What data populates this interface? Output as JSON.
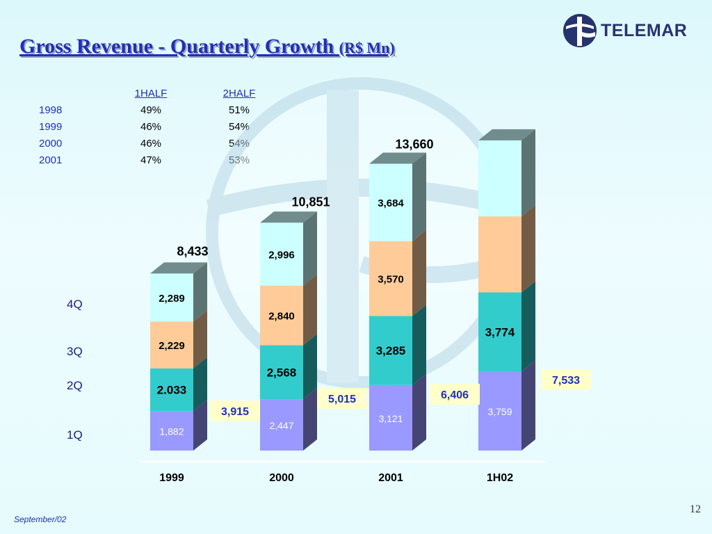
{
  "slide": {
    "title": "Gross Revenue  - Quarterly Growth",
    "title_unit": "(R$ Mn)",
    "logo_text": "TELEMAR",
    "page_number": "12",
    "footer": "September/02"
  },
  "half_split": {
    "headers": [
      "1HALF",
      "2HALF"
    ],
    "rows": [
      {
        "year": "1998",
        "h1": "49%",
        "h2": "51%"
      },
      {
        "year": "1999",
        "h1": "46%",
        "h2": "54%"
      },
      {
        "year": "2000",
        "h1": "46%",
        "h2": "54%"
      },
      {
        "year": "2001",
        "h1": "47%",
        "h2": "53%"
      }
    ]
  },
  "quarter_labels": [
    "4Q",
    "3Q",
    "2Q",
    "1Q"
  ],
  "colors": {
    "q1": "#9999ff",
    "q2": "#33cccc",
    "q3": "#ffcc99",
    "q4": "#ccffff",
    "title": "#1f2fb8",
    "callout": "#ffffcc",
    "logo": "#26336e"
  },
  "chart_data": {
    "type": "bar",
    "stacked": true,
    "categories": [
      "1999",
      "2000",
      "2001",
      "1H02"
    ],
    "series": [
      {
        "name": "1Q",
        "values": [
          1882,
          2447,
          3121,
          3759
        ],
        "labels": [
          "1,882",
          "2,447",
          "3,121",
          "3,759"
        ]
      },
      {
        "name": "2Q",
        "values": [
          2033,
          2568,
          3285,
          3774
        ],
        "labels": [
          "2.033",
          "2,568",
          "3,285",
          "3,774"
        ]
      },
      {
        "name": "3Q",
        "values": [
          2229,
          2840,
          3570,
          3620
        ],
        "labels": [
          "2,229",
          "2,840",
          "3,570",
          ""
        ]
      },
      {
        "name": "4Q",
        "values": [
          2289,
          2996,
          3684,
          3620
        ],
        "labels": [
          "2,289",
          "2,996",
          "3,684",
          ""
        ]
      }
    ],
    "totals": [
      "8,433",
      "10,851",
      "13,660",
      ""
    ],
    "half_totals": [
      "3,915",
      "5,015",
      "6,406",
      "7,533"
    ],
    "grid": false
  }
}
